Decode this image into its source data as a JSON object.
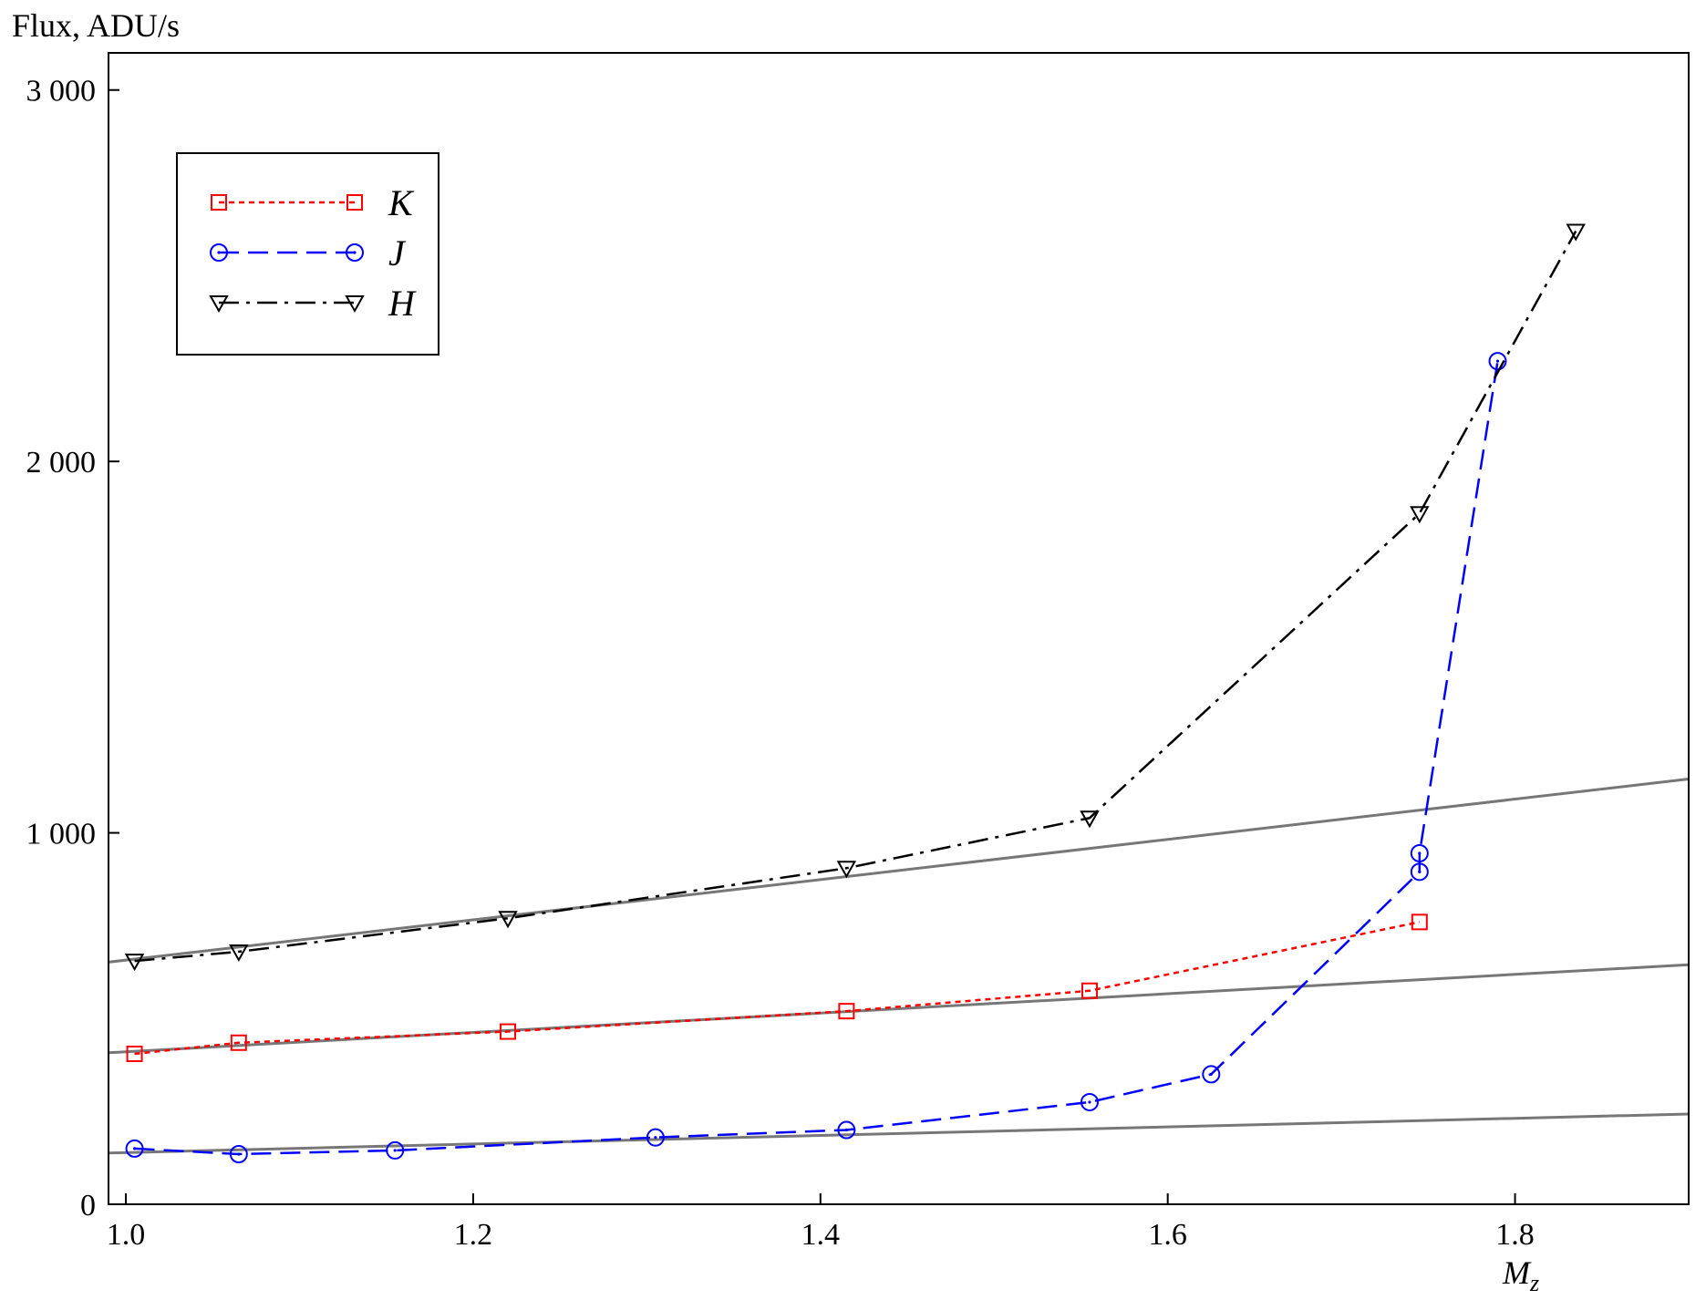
{
  "chart_data": {
    "type": "line",
    "ylabel": "Flux, ADU/s",
    "xlabel": "M",
    "xlabel_subscript": "z",
    "xlim": [
      0.99,
      1.9
    ],
    "ylim": [
      0,
      3100
    ],
    "x_ticks": [
      1.0,
      1.2,
      1.4,
      1.6,
      1.8
    ],
    "x_tick_labels": [
      "1.0",
      "1.2",
      "1.4",
      "1.6",
      "1.8"
    ],
    "y_ticks": [
      0,
      1000,
      2000,
      3000
    ],
    "y_tick_labels": [
      "0",
      "1 000",
      "2 000",
      "3 000"
    ],
    "grid": false,
    "legend_position": "top-left",
    "series": [
      {
        "name": "K",
        "color": "#ff0000",
        "dash": "dotted",
        "marker": "square",
        "x": [
          1.005,
          1.065,
          1.22,
          1.415,
          1.555,
          1.745
        ],
        "y": [
          405,
          435,
          465,
          520,
          575,
          760
        ]
      },
      {
        "name": "J",
        "color": "#0000ff",
        "dash": "dashed",
        "marker": "circle",
        "x": [
          1.005,
          1.065,
          1.155,
          1.305,
          1.415,
          1.555,
          1.625,
          1.745,
          1.745,
          1.79
        ],
        "y": [
          150,
          135,
          145,
          180,
          200,
          275,
          350,
          895,
          945,
          2270
        ]
      },
      {
        "name": "H",
        "color": "#000000",
        "dash": "dashdot",
        "marker": "triangle-down",
        "x": [
          1.005,
          1.065,
          1.22,
          1.415,
          1.555,
          1.745,
          1.835
        ],
        "y": [
          655,
          680,
          770,
          905,
          1040,
          1860,
          2620
        ]
      }
    ],
    "fit_lines": [
      {
        "color": "#777777",
        "x": [
          0.99,
          1.9
        ],
        "y": [
          652,
          1145
        ]
      },
      {
        "color": "#777777",
        "x": [
          0.99,
          1.9
        ],
        "y": [
          408,
          645
        ]
      },
      {
        "color": "#777777",
        "x": [
          0.99,
          1.9
        ],
        "y": [
          138,
          243
        ]
      }
    ]
  }
}
